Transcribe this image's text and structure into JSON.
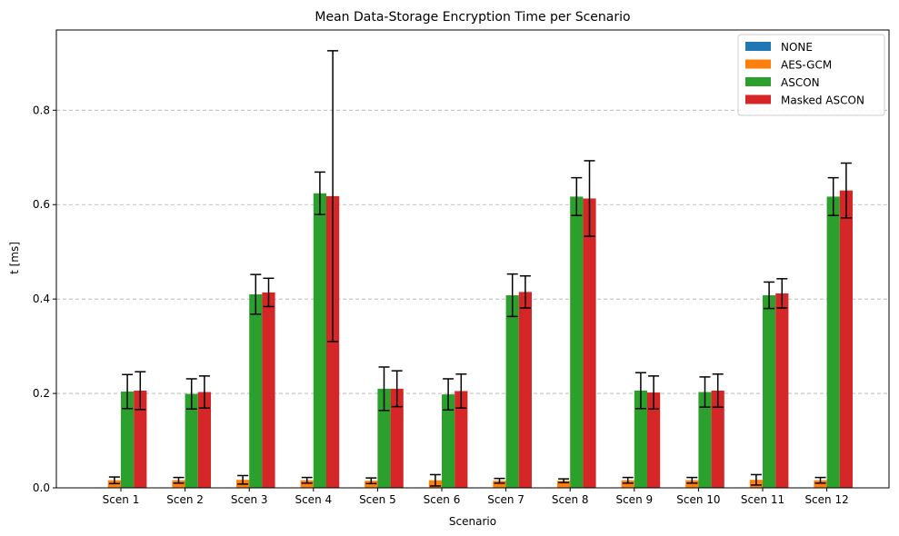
{
  "chart_data": {
    "type": "bar",
    "title": "Mean Data-Storage Encryption Time per Scenario",
    "xlabel": "Scenario",
    "ylabel": "t [ms]",
    "ylim": [
      0,
      0.97
    ],
    "yticks": [
      0.0,
      0.2,
      0.4,
      0.6,
      0.8
    ],
    "ytick_labels": [
      "0.0",
      "0.2",
      "0.4",
      "0.6",
      "0.8"
    ],
    "grid": "y-dashed",
    "legend_position": "top-right",
    "categories": [
      "Scen 1",
      "Scen 2",
      "Scen 3",
      "Scen 4",
      "Scen 5",
      "Scen 6",
      "Scen 7",
      "Scen 8",
      "Scen 9",
      "Scen 10",
      "Scen 11",
      "Scen 12"
    ],
    "series": [
      {
        "name": "NONE",
        "color": "#1f77b4",
        "values": [
          0.001,
          0.001,
          0.001,
          0.001,
          0.001,
          0.001,
          0.001,
          0.001,
          0.001,
          0.001,
          0.001,
          0.001
        ],
        "errors": [
          0.0,
          0.0,
          0.0,
          0.0,
          0.0,
          0.0,
          0.0,
          0.0,
          0.0,
          0.0,
          0.0,
          0.0
        ]
      },
      {
        "name": "AES-GCM",
        "color": "#ff7f0e",
        "values": [
          0.016,
          0.016,
          0.017,
          0.016,
          0.015,
          0.016,
          0.015,
          0.015,
          0.016,
          0.016,
          0.017,
          0.016
        ],
        "errors": [
          0.007,
          0.006,
          0.009,
          0.006,
          0.006,
          0.012,
          0.005,
          0.004,
          0.006,
          0.006,
          0.011,
          0.006
        ]
      },
      {
        "name": "ASCON",
        "color": "#2ca02c",
        "values": [
          0.204,
          0.199,
          0.41,
          0.624,
          0.21,
          0.198,
          0.408,
          0.617,
          0.206,
          0.203,
          0.408,
          0.617
        ],
        "errors": [
          0.036,
          0.032,
          0.042,
          0.045,
          0.046,
          0.033,
          0.045,
          0.04,
          0.038,
          0.032,
          0.028,
          0.04
        ]
      },
      {
        "name": "Masked ASCON",
        "color": "#d62728",
        "values": [
          0.206,
          0.203,
          0.414,
          0.618,
          0.21,
          0.205,
          0.415,
          0.613,
          0.202,
          0.206,
          0.412,
          0.63
        ],
        "errors": [
          0.04,
          0.034,
          0.03,
          0.308,
          0.038,
          0.036,
          0.034,
          0.08,
          0.035,
          0.035,
          0.031,
          0.058
        ]
      }
    ]
  }
}
